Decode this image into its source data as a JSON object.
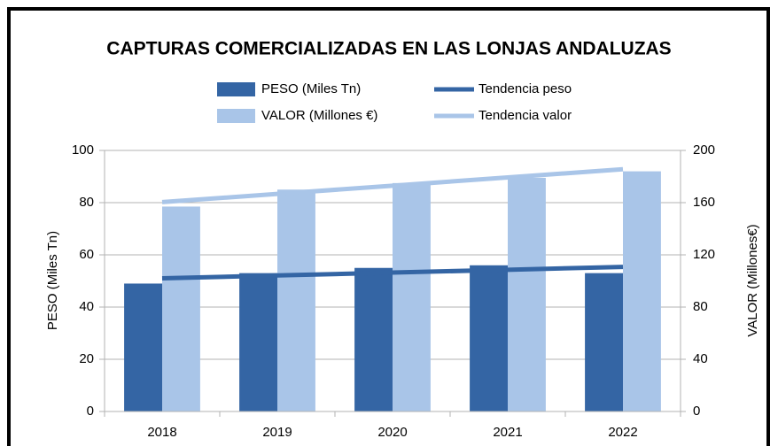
{
  "chart_data": {
    "type": "bar",
    "title": "CAPTURAS COMERCIALIZADAS EN LAS LONJAS ANDALUZAS",
    "categories": [
      "2018",
      "2019",
      "2020",
      "2021",
      "2022"
    ],
    "series": [
      {
        "name": "PESO (Miles Tn)",
        "type": "bar",
        "color": "#3465a4",
        "values": [
          49,
          53,
          55,
          56,
          53
        ]
      },
      {
        "name": "VALOR (Millones €)",
        "type": "bar",
        "axis": "y2",
        "color": "#a9c5e8",
        "values": [
          157,
          170,
          175,
          179,
          184
        ]
      },
      {
        "name": "Tendencia peso",
        "type": "line",
        "color": "#3465a4",
        "values": [
          51,
          52.1,
          53.2,
          54.3,
          55.4
        ]
      },
      {
        "name": "Tendencia valor",
        "type": "line",
        "axis": "y2",
        "color": "#a9c5e8",
        "values": [
          160.4,
          166.7,
          173,
          179.3,
          185.6
        ]
      }
    ],
    "ylabel": "PESO (Miles Tn)",
    "y2label": "VALOR (Millones€)",
    "ylim": [
      0,
      100
    ],
    "yticks": [
      0,
      20,
      40,
      60,
      80,
      100
    ],
    "y2lim": [
      0,
      200
    ],
    "y2ticks": [
      0,
      40,
      80,
      120,
      160,
      200
    ],
    "grid": true,
    "legend": "top"
  }
}
